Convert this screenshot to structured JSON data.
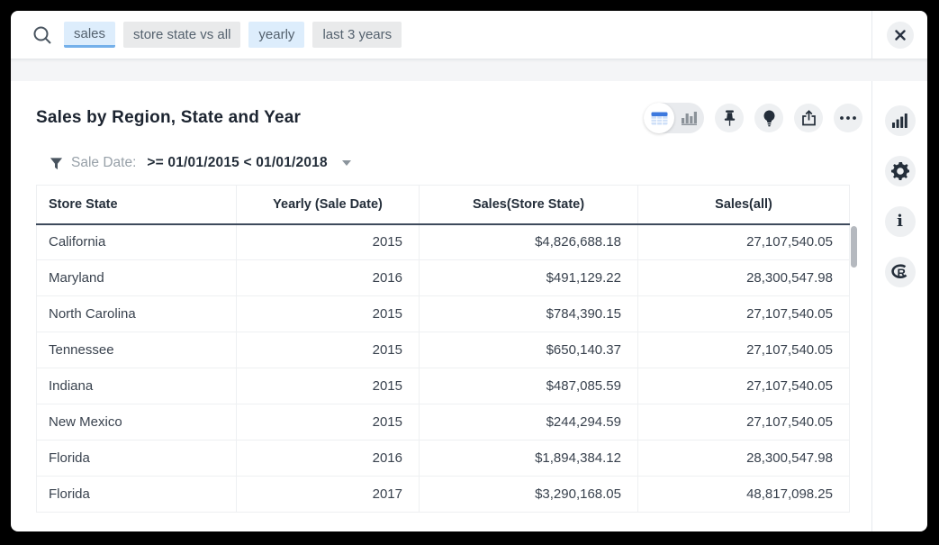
{
  "search": {
    "tokens": [
      {
        "text": "sales",
        "style": "active"
      },
      {
        "text": "store state vs all",
        "style": "plain"
      },
      {
        "text": "yearly",
        "style": "highlight"
      },
      {
        "text": "last 3 years",
        "style": "plain"
      }
    ]
  },
  "header": {
    "title": "Sales by Region, State and Year",
    "toolbar": [
      "table-view",
      "chart-view",
      "pin",
      "insights",
      "share",
      "more"
    ]
  },
  "filter": {
    "label": "Sale Date:",
    "value": ">= 01/01/2015 < 01/01/2018"
  },
  "table": {
    "columns": [
      "Store State",
      "Yearly (Sale Date)",
      "Sales(Store State)",
      "Sales(all)"
    ],
    "rows": [
      [
        "California",
        "2015",
        "$4,826,688.18",
        "27,107,540.05"
      ],
      [
        "Maryland",
        "2016",
        "$491,129.22",
        "28,300,547.98"
      ],
      [
        "North Carolina",
        "2015",
        "$784,390.15",
        "27,107,540.05"
      ],
      [
        "Tennessee",
        "2015",
        "$650,140.37",
        "27,107,540.05"
      ],
      [
        "Indiana",
        "2015",
        "$487,085.59",
        "27,107,540.05"
      ],
      [
        "New Mexico",
        "2015",
        "$244,294.59",
        "27,107,540.05"
      ],
      [
        "Florida",
        "2016",
        "$1,894,384.12",
        "28,300,547.98"
      ],
      [
        "Florida",
        "2017",
        "$3,290,168.05",
        "48,817,098.25"
      ]
    ]
  },
  "sidebar": {
    "icons": [
      "visualizations",
      "settings",
      "info",
      "r-analysis"
    ]
  },
  "colors": {
    "accent_blue": "#3d79de",
    "token_highlight": "#ddedfc",
    "token_underline": "#74b0ea",
    "icon_dark": "#242e3a",
    "header_border": "#3e4a5c"
  }
}
